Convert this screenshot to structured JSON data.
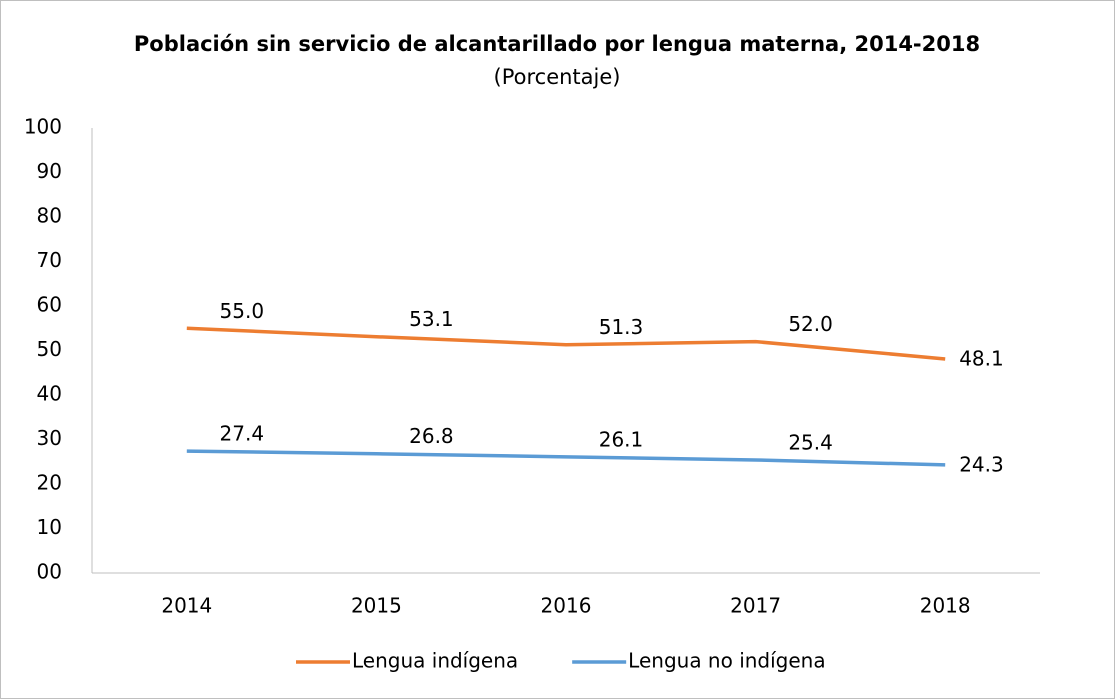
{
  "chart_data": {
    "type": "line",
    "title": "Población sin servicio de alcantarillado por lengua materna, 2014-2018",
    "subtitle": "(Porcentaje)",
    "categories": [
      "2014",
      "2015",
      "2016",
      "2017",
      "2018"
    ],
    "series": [
      {
        "name": "Lengua indígena",
        "color": "#ed7d31",
        "values": [
          55.0,
          53.1,
          51.3,
          52.0,
          48.1
        ],
        "value_labels": [
          "55.0",
          "53.1",
          "51.3",
          "52.0",
          "48.1"
        ]
      },
      {
        "name": "Lengua no indígena",
        "color": "#5b9bd5",
        "values": [
          27.4,
          26.8,
          26.1,
          25.4,
          24.3
        ],
        "value_labels": [
          "27.4",
          "26.8",
          "26.1",
          "25.4",
          "24.3"
        ]
      }
    ],
    "ylim": [
      0,
      100
    ],
    "yticks": [
      {
        "value": 0,
        "label": "00"
      },
      10,
      20,
      30,
      40,
      50,
      60,
      70,
      80,
      90,
      100
    ],
    "grid": false,
    "legend": "bottom"
  }
}
